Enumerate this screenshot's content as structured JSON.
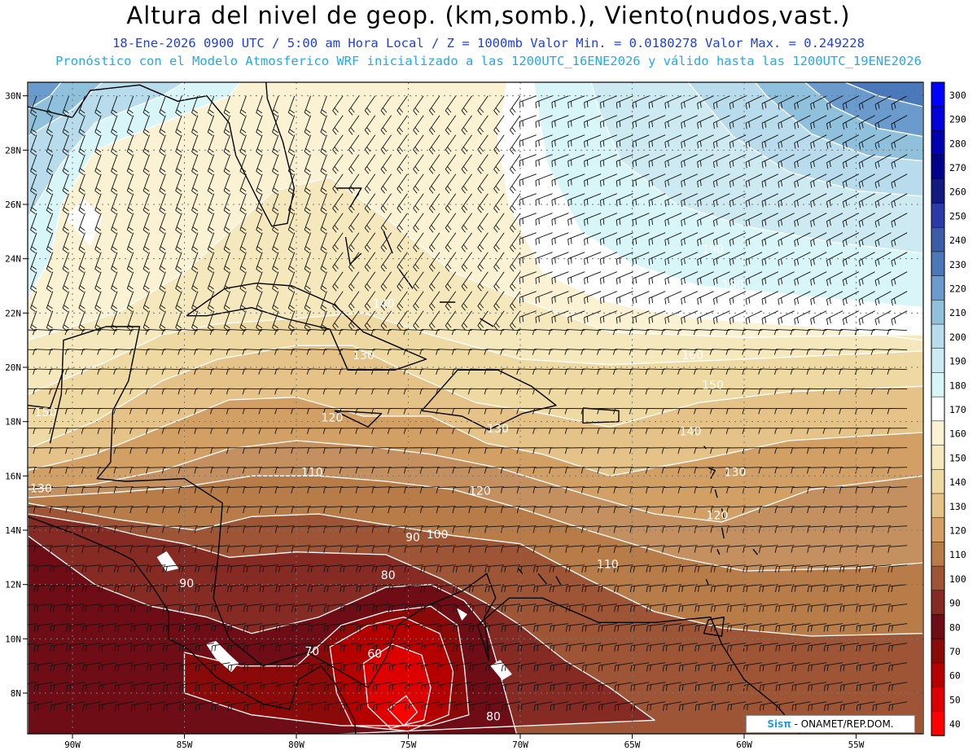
{
  "header": {
    "title": "Altura del nivel de geop. (km,somb.), Viento(nudos,vast.)",
    "line1": "18-Ene-2026  0900 UTC / 5:00 am Hora Local / Z = 1000mb  Valor Min. = 0.0180278  Valor Max. = 0.249228",
    "line2": "Pronóstico con el Modelo Atmosferico WRF inicializado a las 1200UTC_16ENE2026 y válido hasta las  1200UTC_19ENE2026"
  },
  "map": {
    "lon_range": [
      -92,
      -52
    ],
    "lat_range": [
      6.5,
      30.5
    ],
    "lon_ticks": [
      "90W",
      "85W",
      "80W",
      "75W",
      "70W",
      "65W",
      "60W",
      "55W"
    ],
    "lon_tick_values": [
      -90,
      -85,
      -80,
      -75,
      -70,
      -65,
      -60,
      -55
    ],
    "lat_ticks": [
      "8N",
      "10N",
      "12N",
      "14N",
      "16N",
      "18N",
      "20N",
      "22N",
      "24N",
      "26N",
      "28N",
      "30N"
    ],
    "lat_tick_values": [
      8,
      10,
      12,
      14,
      16,
      18,
      20,
      22,
      24,
      26,
      28,
      30
    ],
    "contour_labels": [
      {
        "text": "130",
        "lon": -77.0,
        "lat": 20.3
      },
      {
        "text": "140",
        "lon": -76.1,
        "lat": 22.2
      },
      {
        "text": "120",
        "lon": -78.4,
        "lat": 18.0
      },
      {
        "text": "110",
        "lon": -79.3,
        "lat": 16.0
      },
      {
        "text": "130",
        "lon": -91.4,
        "lat": 15.4
      },
      {
        "text": "150",
        "lon": -91.2,
        "lat": 18.2
      },
      {
        "text": "90",
        "lon": -74.8,
        "lat": 13.6
      },
      {
        "text": "100",
        "lon": -73.7,
        "lat": 13.7
      },
      {
        "text": "120",
        "lon": -71.8,
        "lat": 15.3
      },
      {
        "text": "80",
        "lon": -75.9,
        "lat": 12.2
      },
      {
        "text": "90",
        "lon": -84.9,
        "lat": 11.9
      },
      {
        "text": "70",
        "lon": -79.3,
        "lat": 9.4
      },
      {
        "text": "60",
        "lon": -76.5,
        "lat": 9.3
      },
      {
        "text": "80",
        "lon": -71.2,
        "lat": 7.0
      },
      {
        "text": "110",
        "lon": -66.1,
        "lat": 12.6
      },
      {
        "text": "120",
        "lon": -61.2,
        "lat": 14.4
      },
      {
        "text": "130",
        "lon": -60.4,
        "lat": 16.0
      },
      {
        "text": "140",
        "lon": -62.4,
        "lat": 17.5
      },
      {
        "text": "150",
        "lon": -61.4,
        "lat": 19.2
      },
      {
        "text": "160",
        "lon": -62.3,
        "lat": 20.3
      },
      {
        "text": "130",
        "lon": -71.0,
        "lat": 17.6
      },
      {
        "text": "190",
        "lon": -61.4,
        "lat": 24.2
      },
      {
        "text": "180",
        "lon": -60.5,
        "lat": 22.9
      }
    ]
  },
  "colorbar": {
    "labels": [
      "300",
      "290",
      "280",
      "270",
      "260",
      "250",
      "240",
      "230",
      "220",
      "210",
      "200",
      "190",
      "180",
      "170",
      "160",
      "150",
      "140",
      "130",
      "120",
      "110",
      "100",
      "90",
      "80",
      "70",
      "60",
      "50",
      "40"
    ],
    "colors": [
      "#0000ff",
      "#0000d8",
      "#0000b0",
      "#00008a",
      "#121a80",
      "#2a3aa8",
      "#3c5ca8",
      "#4a78b8",
      "#6b9bcc",
      "#8fc0dc",
      "#b8dcec",
      "#cdeaf2",
      "#d8f5f8",
      "#ffffff",
      "#fbf2d4",
      "#f6e8bd",
      "#efd9a2",
      "#e5c287",
      "#d2a064",
      "#b87c48",
      "#9e5535",
      "#862a24",
      "#6e0d16",
      "#8a0a0a",
      "#b50000",
      "#dd0000",
      "#ff0000"
    ]
  },
  "credit": {
    "brand": "Sisπ",
    "text": " - ONAMET/REP.DOM."
  }
}
